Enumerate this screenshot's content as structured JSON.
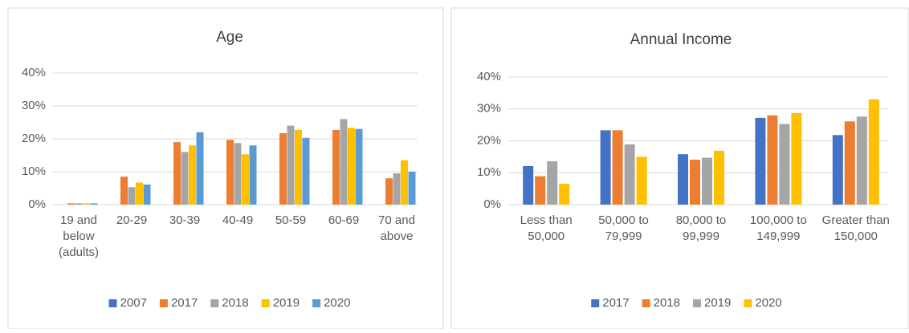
{
  "chart_data": [
    {
      "type": "bar",
      "title": "Age",
      "categories": [
        "19 and below (adults)",
        "20-29",
        "30-39",
        "40-49",
        "50-59",
        "60-69",
        "70 and above"
      ],
      "series": [
        {
          "name": "2007",
          "color": "#4472c4",
          "values": [
            null,
            null,
            null,
            null,
            null,
            null,
            null
          ]
        },
        {
          "name": "2017",
          "color": "#ed7d31",
          "values": [
            0.4,
            8.5,
            19,
            19.7,
            21.7,
            22.7,
            8
          ]
        },
        {
          "name": "2018",
          "color": "#a5a5a5",
          "values": [
            0.4,
            5.3,
            16,
            18.7,
            24,
            26,
            9.5
          ]
        },
        {
          "name": "2019",
          "color": "#ffc000",
          "values": [
            0.4,
            6.7,
            18,
            15.3,
            22.7,
            23.3,
            13.5
          ]
        },
        {
          "name": "2020",
          "color": "#5b9bd5",
          "values": [
            0.4,
            6.1,
            22,
            18,
            20.3,
            23,
            10
          ]
        }
      ],
      "ylim": [
        0,
        40
      ],
      "yticks": [
        {
          "value": 0,
          "label": "0%"
        },
        {
          "value": 10,
          "label": "10%"
        },
        {
          "value": 20,
          "label": "20%"
        },
        {
          "value": 30,
          "label": "30%"
        },
        {
          "value": 40,
          "label": "40%"
        }
      ],
      "grid": true,
      "legend": "bottom"
    },
    {
      "type": "bar",
      "title": "Annual Income",
      "categories": [
        "Less than 50,000",
        "50,000 to 79,999",
        "80,000 to 99,999",
        "100,000 to 149,999",
        "Greater than 150,000"
      ],
      "series": [
        {
          "name": "2017",
          "color": "#4472c4",
          "values": [
            12.1,
            23.3,
            15.8,
            27.2,
            21.8
          ]
        },
        {
          "name": "2018",
          "color": "#ed7d31",
          "values": [
            8.9,
            23.3,
            14.1,
            28,
            26.1
          ]
        },
        {
          "name": "2019",
          "color": "#a5a5a5",
          "values": [
            13.6,
            18.9,
            14.7,
            25.3,
            27.6
          ]
        },
        {
          "name": "2020",
          "color": "#ffc000",
          "values": [
            6.5,
            15,
            16.9,
            28.7,
            33
          ]
        }
      ],
      "ylim": [
        0,
        40
      ],
      "yticks": [
        {
          "value": 0,
          "label": "0%"
        },
        {
          "value": 10,
          "label": "10%"
        },
        {
          "value": 20,
          "label": "20%"
        },
        {
          "value": 30,
          "label": "30%"
        },
        {
          "value": 40,
          "label": "40%"
        }
      ],
      "grid": true,
      "legend": "bottom"
    }
  ]
}
